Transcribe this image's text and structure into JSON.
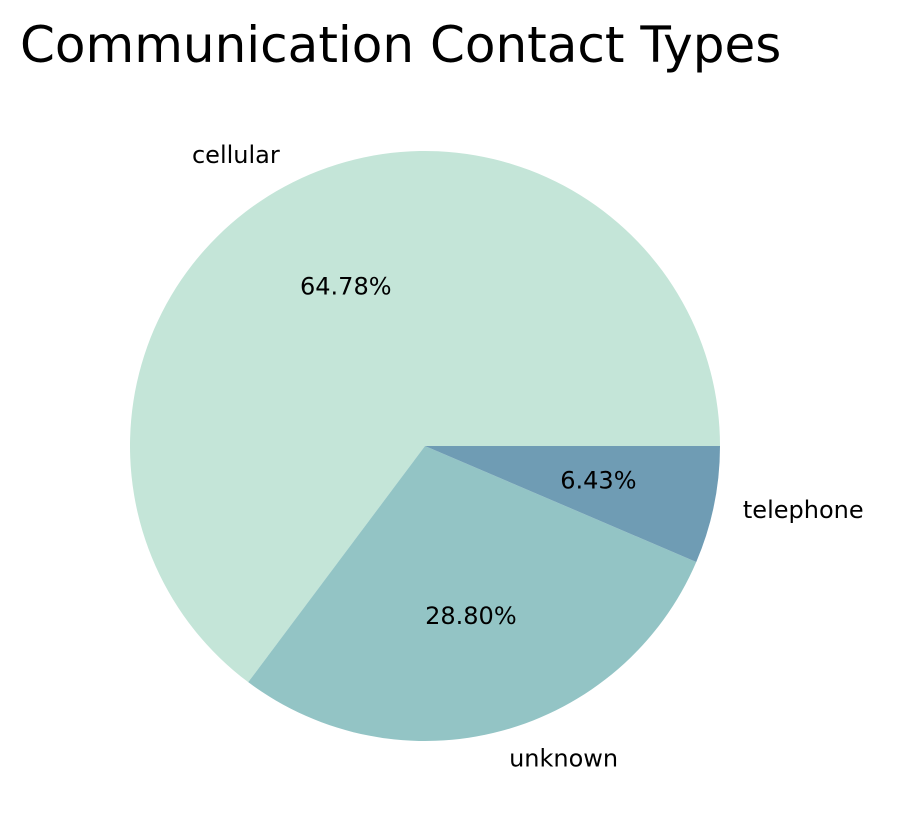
{
  "chart_data": {
    "type": "pie",
    "title": "Communication Contact Types",
    "categories": [
      "cellular",
      "unknown",
      "telephone"
    ],
    "values": [
      64.78,
      28.8,
      6.43
    ],
    "value_labels": [
      "64.78%",
      "28.80%",
      "6.43%"
    ],
    "colors": [
      "#c4e5d8",
      "#93c4c5",
      "#6f9cb4"
    ],
    "start_angle_deg": 0,
    "direction": "counterclockwise",
    "legend": "none"
  }
}
